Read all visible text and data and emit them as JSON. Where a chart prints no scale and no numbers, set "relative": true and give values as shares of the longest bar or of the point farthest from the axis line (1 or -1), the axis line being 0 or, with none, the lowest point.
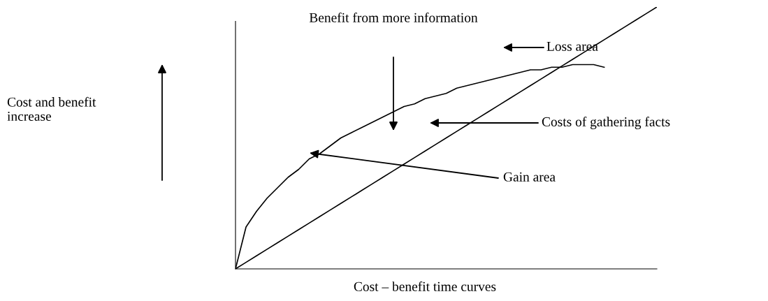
{
  "chart_data": {
    "type": "line",
    "relative": true,
    "xlabel": "Cost – benefit time curves",
    "categories": [
      null,
      null,
      null,
      null,
      null,
      null,
      null,
      null,
      null,
      null,
      null,
      null,
      null,
      null,
      null,
      null,
      null,
      null,
      null,
      null,
      null,
      null,
      null,
      null,
      null,
      null,
      null,
      null,
      null,
      null,
      null,
      null,
      null,
      null,
      null,
      null,
      null,
      null,
      null,
      null,
      null
    ],
    "series": [
      {
        "color": "#000000",
        "values": [
          0,
          0.16,
          0.22,
          0.27,
          0.31,
          0.35,
          0.38,
          0.42,
          0.44,
          0.47,
          0.5,
          0.52,
          0.54,
          0.56,
          0.58,
          0.6,
          0.62,
          0.63,
          0.65,
          0.66,
          0.67,
          0.69,
          0.7,
          0.71,
          0.72,
          0.73,
          0.74,
          0.75,
          0.76,
          0.76,
          0.77,
          0.77,
          0.78,
          0.78,
          0.78,
          0.77,
          null,
          null,
          null,
          null,
          null
        ]
      },
      {
        "color": "#000000",
        "values": [
          0,
          0.025,
          0.05,
          0.075,
          0.1,
          0.125,
          0.15,
          0.175,
          0.2,
          0.225,
          0.25,
          0.275,
          0.3,
          0.325,
          0.35,
          0.375,
          0.4,
          0.425,
          0.45,
          0.475,
          0.5,
          0.525,
          0.55,
          0.575,
          0.6,
          0.625,
          0.65,
          0.675,
          0.7,
          0.725,
          0.75,
          0.775,
          0.8,
          0.825,
          0.85,
          0.875,
          0.9,
          0.925,
          0.95,
          0.975,
          1
        ]
      }
    ],
    "annotations": [
      "Benefit from more information",
      "Loss area",
      "Costs of gathering facts",
      "Gain area",
      "Cost and benefit\nincrease"
    ]
  }
}
